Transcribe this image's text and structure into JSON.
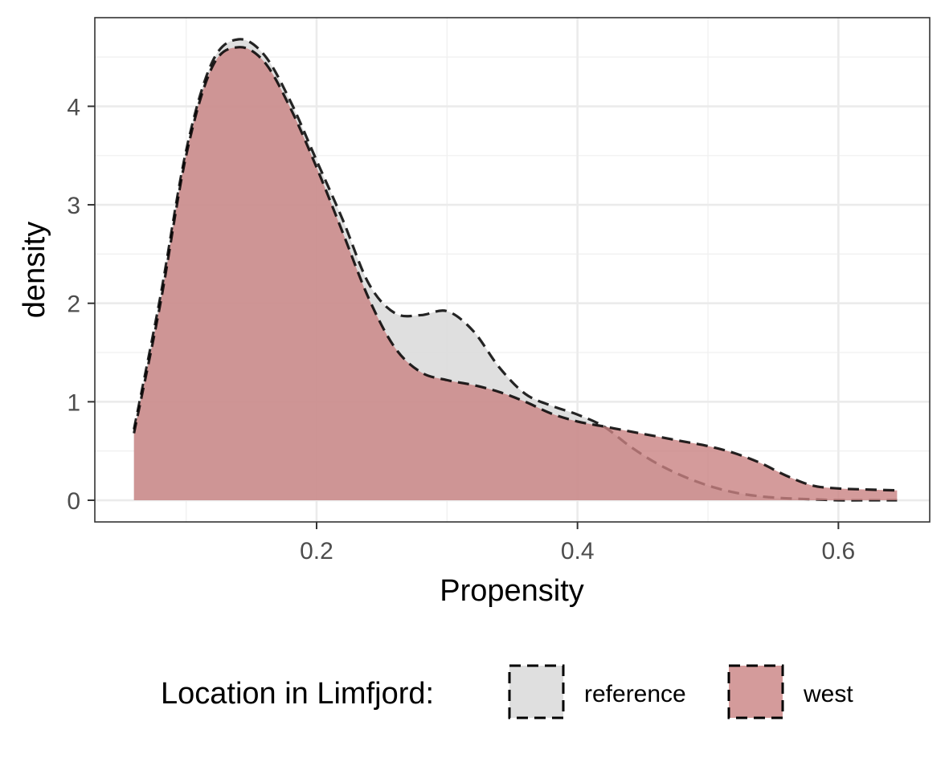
{
  "chart_data": {
    "type": "area",
    "subtype": "density",
    "xlabel": "Propensity",
    "ylabel": "density",
    "xlim": [
      0.03,
      0.67
    ],
    "ylim": [
      -0.22,
      4.9
    ],
    "x_ticks": [
      0.2,
      0.4,
      0.6
    ],
    "x_tick_labels": [
      "0.2",
      "0.4",
      "0.6"
    ],
    "y_ticks": [
      0,
      1,
      2,
      3,
      4
    ],
    "y_tick_labels": [
      "0",
      "1",
      "2",
      "3",
      "4"
    ],
    "grid": true,
    "legend": {
      "title": "Location in Limfjord:",
      "position": "bottom"
    },
    "series": [
      {
        "name": "reference",
        "color": "#dcdcdc",
        "opacity": 0.9,
        "line_style": "dashed",
        "x": [
          0.06,
          0.08,
          0.1,
          0.12,
          0.14,
          0.16,
          0.18,
          0.2,
          0.22,
          0.24,
          0.26,
          0.28,
          0.3,
          0.32,
          0.34,
          0.36,
          0.38,
          0.4,
          0.42,
          0.44,
          0.46,
          0.48,
          0.5,
          0.52,
          0.54,
          0.56,
          0.58,
          0.6,
          0.62,
          0.645
        ],
        "values": [
          0.72,
          2.05,
          3.55,
          4.45,
          4.68,
          4.52,
          4.05,
          3.45,
          2.85,
          2.2,
          1.9,
          1.88,
          1.92,
          1.72,
          1.35,
          1.08,
          0.96,
          0.87,
          0.75,
          0.55,
          0.38,
          0.25,
          0.15,
          0.08,
          0.04,
          0.02,
          0.01,
          0.0,
          0.0,
          0.0
        ]
      },
      {
        "name": "west",
        "color": "#c98282",
        "opacity": 0.8,
        "line_style": "dashed",
        "x": [
          0.06,
          0.08,
          0.1,
          0.12,
          0.14,
          0.16,
          0.18,
          0.2,
          0.22,
          0.24,
          0.26,
          0.28,
          0.3,
          0.32,
          0.34,
          0.36,
          0.38,
          0.4,
          0.42,
          0.44,
          0.46,
          0.48,
          0.5,
          0.52,
          0.54,
          0.56,
          0.58,
          0.6,
          0.62,
          0.645
        ],
        "values": [
          0.68,
          1.98,
          3.5,
          4.4,
          4.6,
          4.45,
          3.98,
          3.38,
          2.72,
          2.05,
          1.55,
          1.3,
          1.22,
          1.17,
          1.1,
          1.0,
          0.88,
          0.8,
          0.75,
          0.7,
          0.65,
          0.6,
          0.55,
          0.48,
          0.38,
          0.25,
          0.15,
          0.12,
          0.11,
          0.1
        ]
      }
    ]
  }
}
